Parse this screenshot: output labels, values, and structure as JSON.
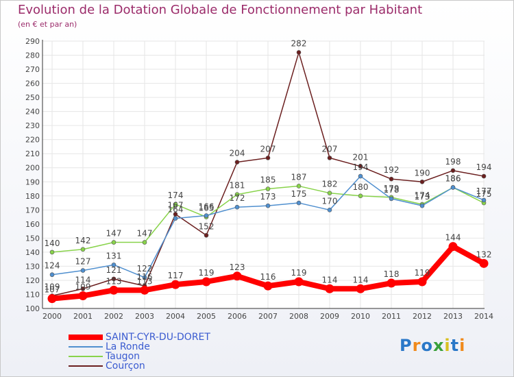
{
  "title": "Evolution de la Dotation Globale de Fonctionnement par Habitant",
  "subtitle": "(en € et par an)",
  "logo": "Proxiti",
  "chart_data": {
    "type": "line",
    "title": "Evolution de la Dotation Globale de Fonctionnement par Habitant",
    "subtitle": "(en € et par an)",
    "xlabel": "",
    "ylabel": "",
    "ylim": [
      100,
      290
    ],
    "yticks": [
      100,
      110,
      120,
      130,
      140,
      150,
      160,
      170,
      180,
      190,
      200,
      210,
      220,
      230,
      240,
      250,
      260,
      270,
      280,
      290
    ],
    "categories": [
      "2000",
      "2001",
      "2002",
      "2003",
      "2004",
      "2005",
      "2006",
      "2007",
      "2008",
      "2009",
      "2010",
      "2011",
      "2012",
      "2013",
      "2014"
    ],
    "legend_position": "bottom-left",
    "series": [
      {
        "name": "SAINT-CYR-DU-DORET",
        "color": "#ff0000",
        "values": [
          107,
          109,
          113,
          113,
          117,
          119,
          123,
          116,
          119,
          114,
          114,
          118,
          119,
          144,
          132
        ]
      },
      {
        "name": "La Ronde",
        "color": "#4f8fcf",
        "values": [
          124,
          127,
          131,
          122,
          164,
          166,
          172,
          173,
          175,
          170,
          194,
          178,
          173,
          186,
          177
        ]
      },
      {
        "name": "Taugon",
        "color": "#88d34a",
        "values": [
          140,
          142,
          147,
          147,
          174,
          165,
          181,
          185,
          187,
          182,
          180,
          179,
          174,
          186,
          175
        ]
      },
      {
        "name": "Courçon",
        "color": "#6b1f1f",
        "values": [
          109,
          114,
          121,
          116,
          167,
          152,
          204,
          207,
          282,
          207,
          201,
          192,
          190,
          198,
          194
        ]
      }
    ]
  }
}
